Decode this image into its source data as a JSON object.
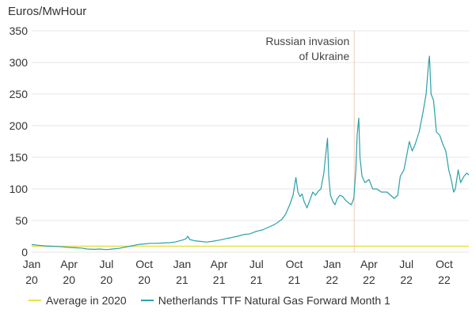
{
  "chart_data": {
    "type": "line",
    "title": "",
    "ylabel": "Euros/MwHour",
    "xlabel": "",
    "ylim": [
      0,
      350
    ],
    "y_ticks": [
      0,
      50,
      100,
      150,
      200,
      250,
      300,
      350
    ],
    "x_range": [
      "2020-01-01",
      "2022-11-30"
    ],
    "x_ticks": [
      {
        "date": "2020-01-01",
        "month": "Jan",
        "year": "20"
      },
      {
        "date": "2020-04-01",
        "month": "Apr",
        "year": "20"
      },
      {
        "date": "2020-07-01",
        "month": "Jul",
        "year": "20"
      },
      {
        "date": "2020-10-01",
        "month": "Oct",
        "year": "20"
      },
      {
        "date": "2021-01-01",
        "month": "Jan",
        "year": "21"
      },
      {
        "date": "2021-04-01",
        "month": "Apr",
        "year": "21"
      },
      {
        "date": "2021-07-01",
        "month": "Jul",
        "year": "21"
      },
      {
        "date": "2021-10-01",
        "month": "Oct",
        "year": "21"
      },
      {
        "date": "2022-01-01",
        "month": "Jan",
        "year": "22"
      },
      {
        "date": "2022-04-01",
        "month": "Apr",
        "year": "22"
      },
      {
        "date": "2022-07-01",
        "month": "Jul",
        "year": "22"
      },
      {
        "date": "2022-10-01",
        "month": "Oct",
        "year": "22"
      }
    ],
    "grid": "horizontal",
    "legend_placement": "bottom",
    "annotation": {
      "date": "2022-02-24",
      "line1": "Russian invasion",
      "line2": "of Ukraine"
    },
    "series": [
      {
        "name": "Average in 2020",
        "color": "#e6e04a",
        "points": [
          [
            "2020-01-01",
            9.4
          ],
          [
            "2022-11-30",
            9.4
          ]
        ]
      },
      {
        "name": "Netherlands TTF Natural Gas Forward Month 1",
        "color": "#2aa0a8",
        "points": [
          [
            "2020-01-01",
            12
          ],
          [
            "2020-01-15",
            11
          ],
          [
            "2020-02-01",
            10
          ],
          [
            "2020-02-15",
            9.5
          ],
          [
            "2020-03-01",
            9
          ],
          [
            "2020-03-15",
            8.5
          ],
          [
            "2020-04-01",
            7.5
          ],
          [
            "2020-04-15",
            7
          ],
          [
            "2020-05-01",
            6.5
          ],
          [
            "2020-05-15",
            5
          ],
          [
            "2020-06-01",
            4.5
          ],
          [
            "2020-06-15",
            5
          ],
          [
            "2020-07-01",
            4
          ],
          [
            "2020-07-15",
            5
          ],
          [
            "2020-08-01",
            6
          ],
          [
            "2020-08-15",
            8
          ],
          [
            "2020-09-01",
            10
          ],
          [
            "2020-09-15",
            12
          ],
          [
            "2020-10-01",
            13
          ],
          [
            "2020-10-15",
            14
          ],
          [
            "2020-11-01",
            14
          ],
          [
            "2020-11-15",
            14.5
          ],
          [
            "2020-12-01",
            15
          ],
          [
            "2020-12-15",
            16
          ],
          [
            "2021-01-01",
            19
          ],
          [
            "2021-01-10",
            21
          ],
          [
            "2021-01-15",
            25
          ],
          [
            "2021-01-20",
            20
          ],
          [
            "2021-02-01",
            18
          ],
          [
            "2021-02-15",
            17
          ],
          [
            "2021-03-01",
            16
          ],
          [
            "2021-03-15",
            17
          ],
          [
            "2021-04-01",
            19
          ],
          [
            "2021-04-15",
            21
          ],
          [
            "2021-05-01",
            23
          ],
          [
            "2021-05-15",
            25
          ],
          [
            "2021-06-01",
            28
          ],
          [
            "2021-06-15",
            29
          ],
          [
            "2021-07-01",
            33
          ],
          [
            "2021-07-15",
            35
          ],
          [
            "2021-08-01",
            40
          ],
          [
            "2021-08-15",
            44
          ],
          [
            "2021-09-01",
            52
          ],
          [
            "2021-09-10",
            60
          ],
          [
            "2021-09-20",
            75
          ],
          [
            "2021-09-28",
            90
          ],
          [
            "2021-10-05",
            118
          ],
          [
            "2021-10-10",
            95
          ],
          [
            "2021-10-15",
            88
          ],
          [
            "2021-10-20",
            92
          ],
          [
            "2021-10-25",
            80
          ],
          [
            "2021-11-01",
            70
          ],
          [
            "2021-11-08",
            82
          ],
          [
            "2021-11-15",
            95
          ],
          [
            "2021-11-22",
            90
          ],
          [
            "2021-11-28",
            96
          ],
          [
            "2021-12-05",
            100
          ],
          [
            "2021-12-12",
            125
          ],
          [
            "2021-12-16",
            150
          ],
          [
            "2021-12-21",
            180
          ],
          [
            "2021-12-24",
            120
          ],
          [
            "2021-12-28",
            90
          ],
          [
            "2022-01-03",
            80
          ],
          [
            "2022-01-08",
            75
          ],
          [
            "2022-01-14",
            85
          ],
          [
            "2022-01-20",
            90
          ],
          [
            "2022-01-27",
            88
          ],
          [
            "2022-02-03",
            82
          ],
          [
            "2022-02-10",
            78
          ],
          [
            "2022-02-17",
            75
          ],
          [
            "2022-02-23",
            85
          ],
          [
            "2022-02-28",
            130
          ],
          [
            "2022-03-03",
            185
          ],
          [
            "2022-03-07",
            212
          ],
          [
            "2022-03-10",
            150
          ],
          [
            "2022-03-15",
            120
          ],
          [
            "2022-03-22",
            110
          ],
          [
            "2022-04-01",
            115
          ],
          [
            "2022-04-10",
            100
          ],
          [
            "2022-04-20",
            100
          ],
          [
            "2022-05-01",
            95
          ],
          [
            "2022-05-15",
            95
          ],
          [
            "2022-06-01",
            85
          ],
          [
            "2022-06-10",
            90
          ],
          [
            "2022-06-16",
            120
          ],
          [
            "2022-06-25",
            130
          ],
          [
            "2022-07-01",
            150
          ],
          [
            "2022-07-08",
            175
          ],
          [
            "2022-07-15",
            160
          ],
          [
            "2022-07-22",
            170
          ],
          [
            "2022-08-01",
            190
          ],
          [
            "2022-08-10",
            220
          ],
          [
            "2022-08-18",
            250
          ],
          [
            "2022-08-24",
            300
          ],
          [
            "2022-08-26",
            310
          ],
          [
            "2022-08-30",
            250
          ],
          [
            "2022-09-05",
            240
          ],
          [
            "2022-09-12",
            190
          ],
          [
            "2022-09-20",
            185
          ],
          [
            "2022-09-28",
            170
          ],
          [
            "2022-10-05",
            160
          ],
          [
            "2022-10-12",
            130
          ],
          [
            "2022-10-18",
            115
          ],
          [
            "2022-10-24",
            95
          ],
          [
            "2022-10-28",
            100
          ],
          [
            "2022-11-04",
            130
          ],
          [
            "2022-11-10",
            110
          ],
          [
            "2022-11-18",
            120
          ],
          [
            "2022-11-25",
            125
          ],
          [
            "2022-11-30",
            122
          ]
        ]
      }
    ]
  }
}
